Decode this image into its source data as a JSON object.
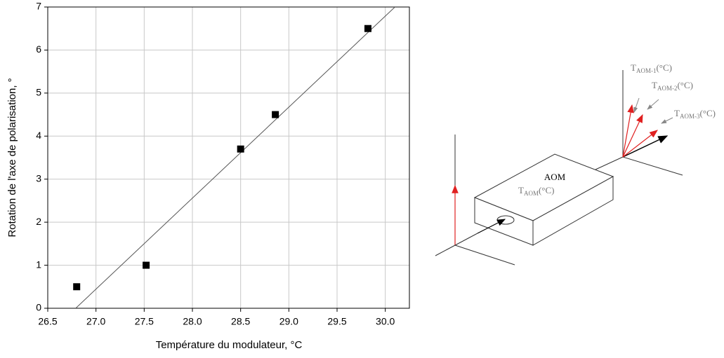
{
  "chart_data": {
    "type": "scatter",
    "x": [
      26.8,
      27.52,
      28.5,
      28.86,
      29.82
    ],
    "values": [
      0.5,
      1.0,
      3.7,
      4.5,
      6.5
    ],
    "color": "#000000",
    "fit": {
      "x": [
        26.79,
        30.1
      ],
      "values": [
        0,
        7
      ]
    },
    "xlabel": "Température du modulateur, °C",
    "ylabel": "Rotation de l'axe de polarisation, °",
    "xlim": [
      26.5,
      30.25
    ],
    "ylim": [
      0,
      7
    ],
    "xticks": [
      26.5,
      {
        "value": 27,
        "label": "27.0"
      },
      27.5,
      {
        "value": 28,
        "label": "28.0"
      },
      28.5,
      {
        "value": 29,
        "label": "29.0"
      },
      29.5,
      {
        "value": 30,
        "label": "30.0"
      }
    ],
    "yticks": [
      0,
      1,
      2,
      3,
      4,
      5,
      6,
      7
    ],
    "grid": true
  },
  "diagram": {
    "box_label": "AOM",
    "labels": [
      {
        "base": "T",
        "sub": "AOM",
        "unit": "(°C)"
      },
      {
        "base": "T",
        "sub": "AOM-1",
        "unit": "(°C)"
      },
      {
        "base": "T",
        "sub": "AOM-2",
        "unit": "(°C)"
      },
      {
        "base": "T",
        "sub": "AOM-3",
        "unit": "(°C)"
      }
    ]
  }
}
